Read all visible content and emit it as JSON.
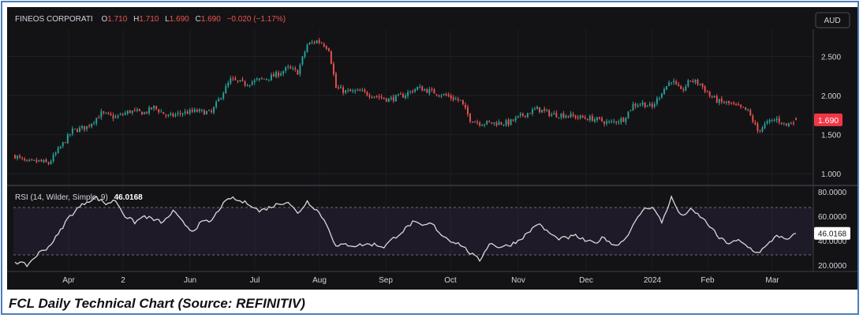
{
  "caption": "FCL Daily Technical Chart (Source: REFINITIV)",
  "legend": {
    "symbol": "FINEOS CORPORATI",
    "o_label": "O",
    "o_value": "1.710",
    "h_label": "H",
    "h_value": "1.710",
    "l_label": "L",
    "l_value": "1.690",
    "c_label": "C",
    "c_value": "1.690",
    "change": "−0.020 (−1.17%)"
  },
  "currency_button": "AUD",
  "colors": {
    "up": "#26a69a",
    "down": "#ef5350",
    "background": "#131316",
    "rsi_line": "#d9d9d9",
    "rsi_band": "#7e57c2"
  },
  "chart_data": [
    {
      "type": "candlestick",
      "y_ticks": [
        "2.500",
        "2.000",
        "1.500",
        "1.000"
      ],
      "ylim": [
        0.85,
        2.85
      ],
      "last_price_label": "1.690",
      "x_ticks": [
        "Apr",
        "2",
        "Jun",
        "Jul",
        "Aug",
        "Sep",
        "Oct",
        "Nov",
        "Dec",
        "2024",
        "Feb",
        "Mar"
      ],
      "anchors": [
        [
          0,
          1.23
        ],
        [
          5,
          1.14
        ],
        [
          10,
          1.16
        ],
        [
          14,
          1.13
        ],
        [
          18,
          1.3
        ],
        [
          24,
          1.55
        ],
        [
          30,
          1.6
        ],
        [
          36,
          1.77
        ],
        [
          42,
          1.72
        ],
        [
          48,
          1.8
        ],
        [
          54,
          1.78
        ],
        [
          58,
          1.85
        ],
        [
          64,
          1.73
        ],
        [
          70,
          1.78
        ],
        [
          76,
          1.8
        ],
        [
          82,
          1.78
        ],
        [
          86,
          2.0
        ],
        [
          90,
          2.2
        ],
        [
          96,
          2.15
        ],
        [
          102,
          2.2
        ],
        [
          108,
          2.25
        ],
        [
          114,
          2.35
        ],
        [
          118,
          2.3
        ],
        [
          122,
          2.65
        ],
        [
          126,
          2.7
        ],
        [
          128,
          2.68
        ],
        [
          131,
          2.6
        ],
        [
          134,
          2.1
        ],
        [
          138,
          2.05
        ],
        [
          144,
          2.05
        ],
        [
          150,
          2.0
        ],
        [
          156,
          1.95
        ],
        [
          162,
          2.0
        ],
        [
          168,
          2.1
        ],
        [
          174,
          2.05
        ],
        [
          180,
          2.0
        ],
        [
          186,
          1.93
        ],
        [
          190,
          1.7
        ],
        [
          194,
          1.65
        ],
        [
          200,
          1.65
        ],
        [
          206,
          1.65
        ],
        [
          212,
          1.75
        ],
        [
          218,
          1.83
        ],
        [
          224,
          1.76
        ],
        [
          230,
          1.75
        ],
        [
          236,
          1.72
        ],
        [
          242,
          1.7
        ],
        [
          248,
          1.65
        ],
        [
          254,
          1.7
        ],
        [
          258,
          1.88
        ],
        [
          262,
          1.9
        ],
        [
          266,
          1.85
        ],
        [
          270,
          2.05
        ],
        [
          274,
          2.2
        ],
        [
          278,
          2.05
        ],
        [
          282,
          2.2
        ],
        [
          286,
          2.15
        ],
        [
          290,
          2.0
        ],
        [
          294,
          1.92
        ],
        [
          298,
          1.9
        ],
        [
          302,
          1.85
        ],
        [
          306,
          1.8
        ],
        [
          310,
          1.55
        ],
        [
          314,
          1.65
        ],
        [
          318,
          1.7
        ],
        [
          322,
          1.62
        ],
        [
          326,
          1.69
        ]
      ]
    },
    {
      "type": "line",
      "title": "RSI (14, Wilder, Simple, 9)",
      "value": "46.0168",
      "y_ticks": [
        "80.0000",
        "60.0000",
        "40.0000",
        "20.0000"
      ],
      "ylim": [
        15,
        85
      ],
      "bands": [
        30,
        70
      ],
      "anchors": [
        [
          0,
          23
        ],
        [
          5,
          20
        ],
        [
          10,
          30
        ],
        [
          14,
          35
        ],
        [
          18,
          45
        ],
        [
          22,
          58
        ],
        [
          26,
          66
        ],
        [
          30,
          72
        ],
        [
          34,
          75
        ],
        [
          38,
          70
        ],
        [
          42,
          73
        ],
        [
          46,
          60
        ],
        [
          50,
          55
        ],
        [
          54,
          60
        ],
        [
          58,
          57
        ],
        [
          62,
          55
        ],
        [
          66,
          64
        ],
        [
          70,
          55
        ],
        [
          74,
          48
        ],
        [
          78,
          55
        ],
        [
          82,
          56
        ],
        [
          86,
          68
        ],
        [
          90,
          75
        ],
        [
          94,
          72
        ],
        [
          98,
          70
        ],
        [
          102,
          64
        ],
        [
          106,
          67
        ],
        [
          110,
          70
        ],
        [
          114,
          72
        ],
        [
          118,
          62
        ],
        [
          122,
          72
        ],
        [
          126,
          65
        ],
        [
          128,
          60
        ],
        [
          131,
          50
        ],
        [
          134,
          35
        ],
        [
          138,
          37
        ],
        [
          142,
          36
        ],
        [
          146,
          37
        ],
        [
          150,
          37
        ],
        [
          154,
          35
        ],
        [
          158,
          42
        ],
        [
          162,
          48
        ],
        [
          166,
          55
        ],
        [
          170,
          52
        ],
        [
          174,
          54
        ],
        [
          178,
          45
        ],
        [
          182,
          40
        ],
        [
          186,
          37
        ],
        [
          190,
          30
        ],
        [
          194,
          24
        ],
        [
          198,
          38
        ],
        [
          202,
          35
        ],
        [
          206,
          36
        ],
        [
          210,
          40
        ],
        [
          214,
          46
        ],
        [
          218,
          54
        ],
        [
          222,
          48
        ],
        [
          226,
          42
        ],
        [
          230,
          42
        ],
        [
          234,
          44
        ],
        [
          238,
          40
        ],
        [
          242,
          38
        ],
        [
          246,
          43
        ],
        [
          250,
          36
        ],
        [
          254,
          40
        ],
        [
          258,
          52
        ],
        [
          262,
          65
        ],
        [
          266,
          68
        ],
        [
          270,
          55
        ],
        [
          274,
          75
        ],
        [
          278,
          60
        ],
        [
          282,
          65
        ],
        [
          286,
          60
        ],
        [
          290,
          52
        ],
        [
          294,
          42
        ],
        [
          298,
          38
        ],
        [
          302,
          40
        ],
        [
          306,
          35
        ],
        [
          310,
          30
        ],
        [
          314,
          36
        ],
        [
          318,
          45
        ],
        [
          322,
          40
        ],
        [
          326,
          46
        ]
      ]
    }
  ]
}
